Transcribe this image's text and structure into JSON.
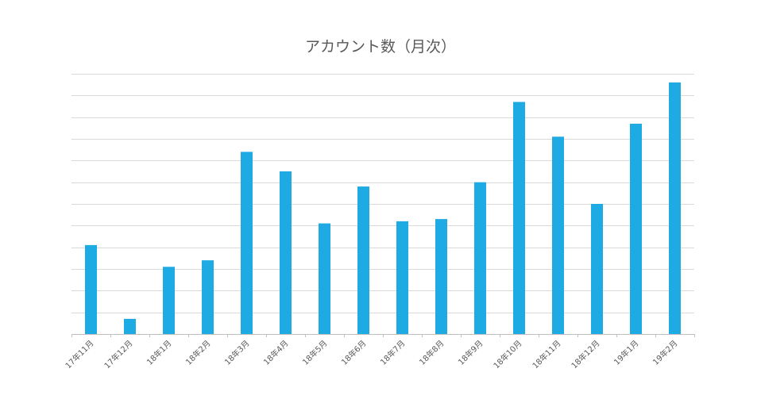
{
  "chart_data": {
    "type": "bar",
    "title": "アカウント数（月次）",
    "categories": [
      "17年11月",
      "17年12月",
      "18年1月",
      "18年2月",
      "18年3月",
      "18年4月",
      "18年5月",
      "18年6月",
      "18年7月",
      "18年8月",
      "18年9月",
      "18年10月",
      "18年11月",
      "18年12月",
      "19年1月",
      "19年2月"
    ],
    "values": [
      41,
      7,
      31,
      34,
      84,
      75,
      51,
      68,
      52,
      53,
      70,
      107,
      91,
      60,
      97,
      116
    ],
    "ylim": [
      0,
      120
    ],
    "gridlines": 12,
    "show_y_tick_labels": false,
    "grid": true,
    "bar_color": "#1eaae2"
  }
}
